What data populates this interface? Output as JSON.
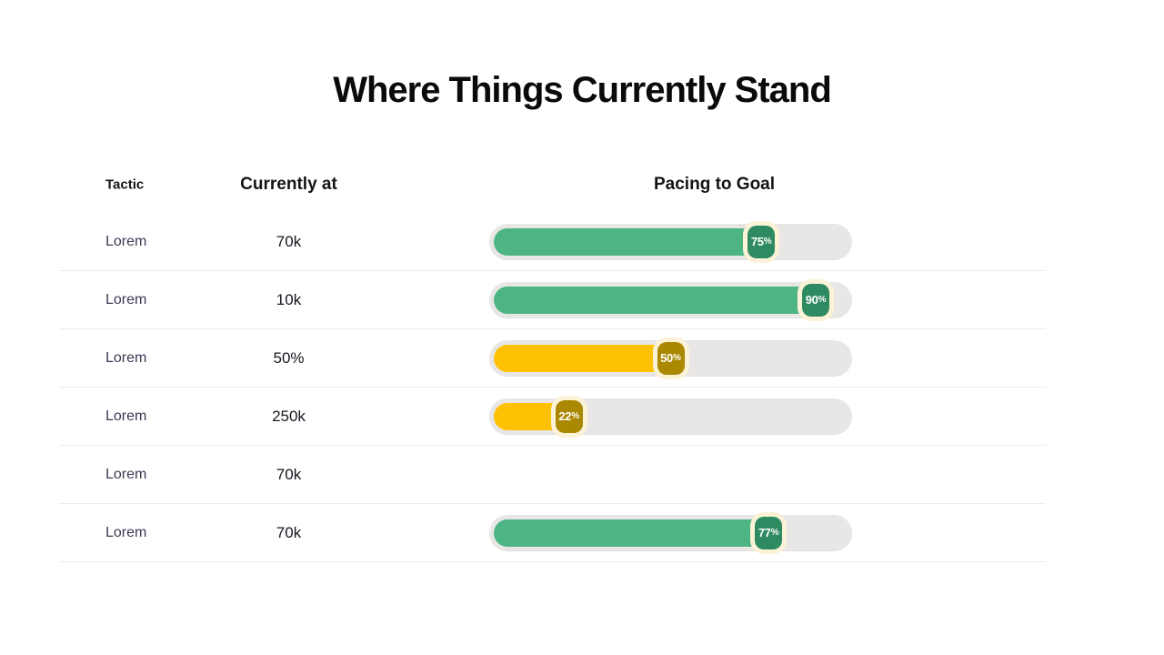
{
  "title": "Where Things Currently Stand",
  "table": {
    "headers": {
      "tactic": "Tactic",
      "currently_at": "Currently at",
      "pacing_to_goal": "Pacing to Goal"
    },
    "rows": [
      {
        "tactic": "Lorem",
        "current_value": "70k",
        "progress_pct": 75,
        "badge_value": "75",
        "badge_suffix": "%",
        "status": "on-track"
      },
      {
        "tactic": "Lorem",
        "current_value": "10k",
        "progress_pct": 90,
        "badge_value": "90",
        "badge_suffix": "%",
        "status": "on-track"
      },
      {
        "tactic": "Lorem",
        "current_value": "50%",
        "progress_pct": 50,
        "badge_value": "50",
        "badge_suffix": "%",
        "status": "behind"
      },
      {
        "tactic": "Lorem",
        "current_value": "250k",
        "progress_pct": 22,
        "badge_value": "22",
        "badge_suffix": "%",
        "status": "behind"
      },
      {
        "tactic": "Lorem",
        "current_value": "70k",
        "progress_pct": null,
        "badge_value": "",
        "badge_suffix": "",
        "status": "none"
      },
      {
        "tactic": "Lorem",
        "current_value": "70k",
        "progress_pct": 77,
        "badge_value": "77",
        "badge_suffix": "%",
        "status": "on-track"
      }
    ]
  },
  "colors": {
    "on_track_fill": "#4cb583",
    "on_track_badge": "#2e8a60",
    "behind_fill": "#ffc103",
    "behind_badge": "#aa8800",
    "track": "#e8e7e5",
    "badge_halo": "#fbf2d8"
  },
  "chart_data": {
    "type": "bar",
    "title": "Where Things Currently Stand",
    "categories": [
      "Lorem",
      "Lorem",
      "Lorem",
      "Lorem",
      "Lorem",
      "Lorem"
    ],
    "series": [
      {
        "name": "Currently at",
        "values": [
          "70k",
          "10k",
          "50%",
          "250k",
          "70k",
          "70k"
        ]
      },
      {
        "name": "Pacing to Goal (%)",
        "values": [
          75,
          90,
          50,
          22,
          null,
          77
        ]
      }
    ],
    "xlabel": "",
    "ylabel": "Pacing to Goal",
    "ylim": [
      0,
      100
    ],
    "grid": false,
    "legend_position": "none"
  }
}
